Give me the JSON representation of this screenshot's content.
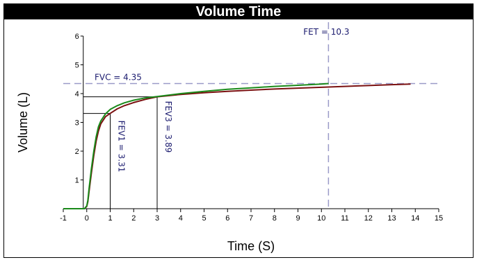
{
  "chart_data": {
    "type": "line",
    "title": "Volume Time",
    "xlabel": "Time (S)",
    "ylabel": "Volume (L)",
    "xlim": [
      -1,
      15
    ],
    "ylim": [
      0,
      6
    ],
    "xticks": [
      "-1",
      "0",
      "1",
      "2",
      "3",
      "4",
      "5",
      "6",
      "7",
      "8",
      "9",
      "10",
      "11",
      "12",
      "13",
      "14",
      "15"
    ],
    "yticks": [
      "1",
      "2",
      "3",
      "4",
      "5",
      "6"
    ],
    "series": [
      {
        "color": "#1a8a1a",
        "x": [
          -1,
          -0.1,
          0,
          0.05,
          0.1,
          0.2,
          0.3,
          0.4,
          0.5,
          0.6,
          0.8,
          1,
          1.3,
          1.6,
          2,
          2.5,
          3,
          4,
          5,
          6,
          7,
          8,
          9,
          10,
          10.3
        ],
        "y": [
          0,
          0,
          0.1,
          0.3,
          0.7,
          1.4,
          2.0,
          2.5,
          2.85,
          3.05,
          3.3,
          3.45,
          3.58,
          3.68,
          3.77,
          3.85,
          3.9,
          4.0,
          4.08,
          4.15,
          4.2,
          4.25,
          4.29,
          4.33,
          4.35
        ]
      },
      {
        "color": "#7a1010",
        "x": [
          -1,
          -0.1,
          0,
          0.05,
          0.1,
          0.2,
          0.3,
          0.4,
          0.5,
          0.6,
          0.8,
          1,
          1.3,
          1.6,
          2,
          2.5,
          3,
          4,
          5,
          6,
          7,
          8,
          9,
          10,
          11,
          12,
          13,
          13.8
        ],
        "y": [
          0,
          0,
          0.08,
          0.25,
          0.6,
          1.25,
          1.85,
          2.35,
          2.7,
          2.95,
          3.2,
          3.31,
          3.47,
          3.58,
          3.69,
          3.8,
          3.89,
          3.97,
          4.03,
          4.08,
          4.12,
          4.16,
          4.19,
          4.22,
          4.25,
          4.28,
          4.31,
          4.33
        ]
      }
    ],
    "reference_lines": {
      "fvc": {
        "label": "FVC = 4.35",
        "y": 4.35,
        "color": "#9a9ac8"
      },
      "fet": {
        "label": "FET = 10.3",
        "x": 10.3,
        "color": "#9a9ac8"
      },
      "fev1": {
        "label": "FEV1 = 3.31",
        "x": 1,
        "y": 3.31
      },
      "fev3": {
        "label": "FEV3 = 3.89",
        "x": 3,
        "y": 3.89
      }
    },
    "grid": false,
    "legend": "none"
  }
}
